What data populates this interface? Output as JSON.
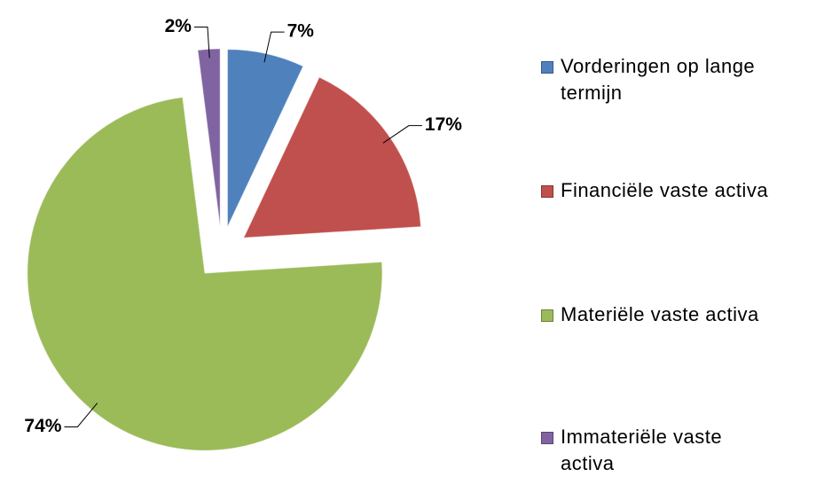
{
  "chart_data": {
    "type": "pie",
    "categories": [
      "Vorderingen op lange termijn",
      "Financiële vaste activa",
      "Materiële vaste activa",
      "Immateriële vaste activa"
    ],
    "values": [
      7,
      17,
      74,
      2
    ],
    "value_labels": [
      "7%",
      "17%",
      "74%",
      "2%"
    ],
    "colors": [
      "#4f81bd",
      "#c0504d",
      "#9bbb59",
      "#8064a2"
    ],
    "legend": "right"
  }
}
